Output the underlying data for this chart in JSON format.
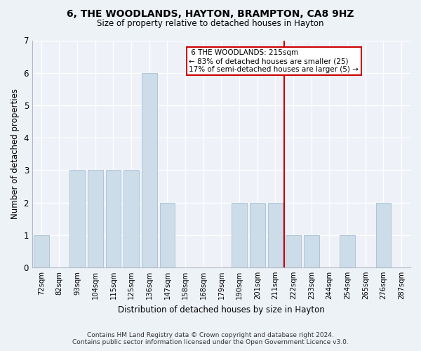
{
  "title": "6, THE WOODLANDS, HAYTON, BRAMPTON, CA8 9HZ",
  "subtitle": "Size of property relative to detached houses in Hayton",
  "xlabel": "Distribution of detached houses by size in Hayton",
  "ylabel": "Number of detached properties",
  "bar_labels": [
    "72sqm",
    "82sqm",
    "93sqm",
    "104sqm",
    "115sqm",
    "125sqm",
    "136sqm",
    "147sqm",
    "158sqm",
    "168sqm",
    "179sqm",
    "190sqm",
    "201sqm",
    "211sqm",
    "222sqm",
    "233sqm",
    "244sqm",
    "254sqm",
    "265sqm",
    "276sqm",
    "287sqm"
  ],
  "bar_values": [
    1,
    0,
    3,
    3,
    3,
    3,
    6,
    2,
    0,
    0,
    0,
    2,
    2,
    2,
    1,
    1,
    0,
    1,
    0,
    2,
    0
  ],
  "bar_color": "#ccdce8",
  "bar_edge_color": "#a8c0d4",
  "subject_line_label": "6 THE WOODLANDS: 215sqm",
  "subject_pct_smaller": 83,
  "subject_n_smaller": 25,
  "subject_pct_larger": 17,
  "subject_n_larger": 5,
  "annotation_box_color": "#cc0000",
  "vline_color": "#cc0000",
  "ylim": [
    0,
    7
  ],
  "yticks": [
    0,
    1,
    2,
    3,
    4,
    5,
    6,
    7
  ],
  "footer_line1": "Contains HM Land Registry data © Crown copyright and database right 2024.",
  "footer_line2": "Contains public sector information licensed under the Open Government Licence v3.0.",
  "bg_color": "#edf2f7",
  "plot_bg_color": "#eef2f8"
}
